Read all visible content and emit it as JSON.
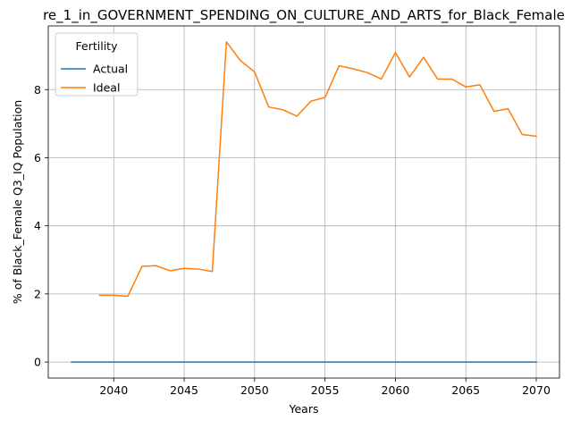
{
  "chart_data": {
    "type": "line",
    "title": "re_1_in_GOVERNMENT_SPENDING_ON_CULTURE_AND_ARTS_for_Black_Female",
    "xlabel": "Years",
    "ylabel": "% of Black_Female Q3_IQ Population",
    "xlim": [
      2035.35,
      2071.65
    ],
    "ylim": [
      -0.47,
      9.87
    ],
    "xticks": [
      2040,
      2045,
      2050,
      2055,
      2060,
      2065,
      2070
    ],
    "yticks": [
      0,
      2,
      4,
      6,
      8
    ],
    "grid": true,
    "legend": {
      "title": "Fertility",
      "placement": "top-left"
    },
    "series": [
      {
        "name": "Actual",
        "color": "#1f77b4",
        "x": [
          2037,
          2038,
          2039,
          2040,
          2041,
          2042,
          2043,
          2044,
          2045,
          2046,
          2047,
          2048,
          2049,
          2050,
          2051,
          2052,
          2053,
          2054,
          2055,
          2056,
          2057,
          2058,
          2059,
          2060,
          2061,
          2062,
          2063,
          2064,
          2065,
          2066,
          2067,
          2068,
          2069,
          2070
        ],
        "y": [
          0,
          0,
          0,
          0,
          0,
          0,
          0,
          0,
          0,
          0,
          0,
          0,
          0,
          0,
          0,
          0,
          0,
          0,
          0,
          0,
          0,
          0,
          0,
          0,
          0,
          0,
          0,
          0,
          0,
          0,
          0,
          0,
          0,
          0
        ]
      },
      {
        "name": "Ideal",
        "color": "#ff7f0e",
        "x": [
          2039,
          2040,
          2041,
          2042,
          2043,
          2044,
          2045,
          2046,
          2047,
          2048,
          2049,
          2050,
          2051,
          2052,
          2053,
          2054,
          2055,
          2056,
          2057,
          2058,
          2059,
          2060,
          2061,
          2062,
          2063,
          2064,
          2065,
          2066,
          2067,
          2068,
          2069,
          2070
        ],
        "y": [
          1.96,
          1.96,
          1.93,
          2.81,
          2.83,
          2.68,
          2.75,
          2.73,
          2.66,
          9.4,
          8.85,
          8.52,
          7.49,
          7.41,
          7.22,
          7.66,
          7.77,
          8.7,
          8.61,
          8.5,
          8.31,
          9.09,
          8.37,
          8.95,
          8.31,
          8.31,
          8.08,
          8.14,
          7.36,
          7.44,
          6.68,
          6.63
        ]
      }
    ]
  }
}
